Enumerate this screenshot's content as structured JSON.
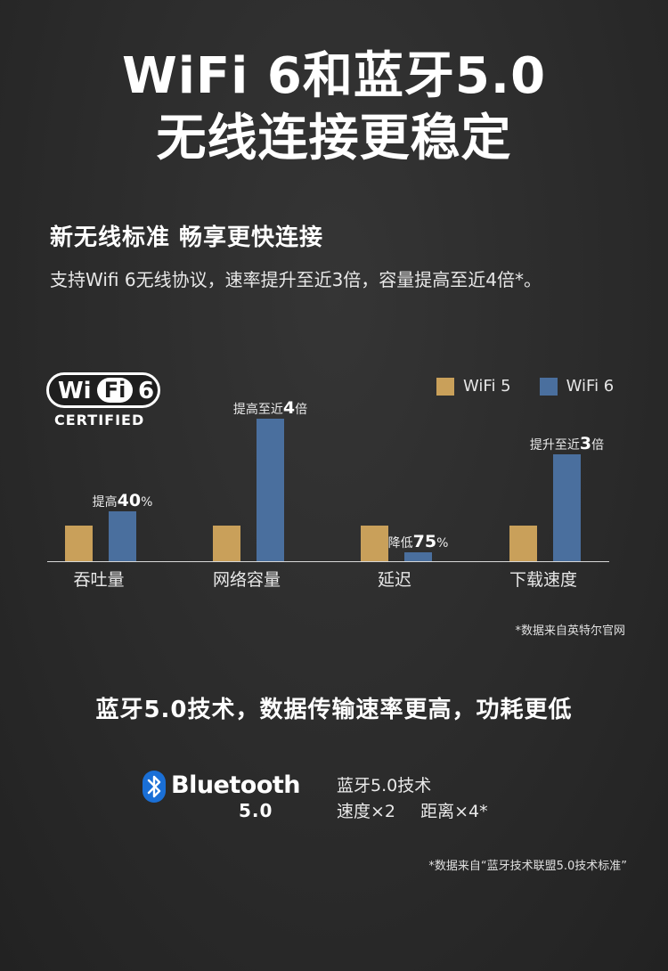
{
  "header": {
    "title_line1": "WiFi 6和蓝牙5.0",
    "title_line2": "无线连接更稳定"
  },
  "wifi_section": {
    "heading": "新无线标准 畅享更快连接",
    "description": "支持Wifi 6无线协议，速率提升至近3倍，容量提高至近4倍*。",
    "logo": {
      "brand_left": "Wi",
      "brand_mid": "Fi",
      "brand_right": "6",
      "certified": "CERTIFIED"
    },
    "footnote": "*数据来自英特尔官网"
  },
  "chart_data": {
    "type": "bar",
    "categories": [
      "吞吐量",
      "网络容量",
      "延迟",
      "下载速度"
    ],
    "series": [
      {
        "name": "WiFi 5",
        "color": "#c9a05a",
        "values": [
          1,
          1,
          1,
          1
        ]
      },
      {
        "name": "WiFi 6",
        "color": "#4a6f9e",
        "values": [
          1.4,
          4,
          0.25,
          3
        ]
      }
    ],
    "annotations": [
      {
        "category": "吞吐量",
        "prefix": "提高",
        "value": "40",
        "suffix": "%"
      },
      {
        "category": "网络容量",
        "prefix": "提高至近",
        "value": "4",
        "suffix": "倍"
      },
      {
        "category": "延迟",
        "prefix": "降低",
        "value": "75",
        "suffix": "%"
      },
      {
        "category": "下载速度",
        "prefix": "提升至近",
        "value": "3",
        "suffix": "倍"
      }
    ],
    "ylim": [
      0,
      4
    ],
    "grid": false,
    "legend": "top-right"
  },
  "bluetooth_section": {
    "heading": "蓝牙5.0技术，数据传输速率更高，功耗更低",
    "logo": {
      "word": "Bluetooth",
      "version": "5.0"
    },
    "desc_line1": "蓝牙5.0技术",
    "spec_speed": "速度×2",
    "spec_range": "距离×4*",
    "footnote": "*数据来自“蓝牙技术联盟5.0技术标准”"
  }
}
